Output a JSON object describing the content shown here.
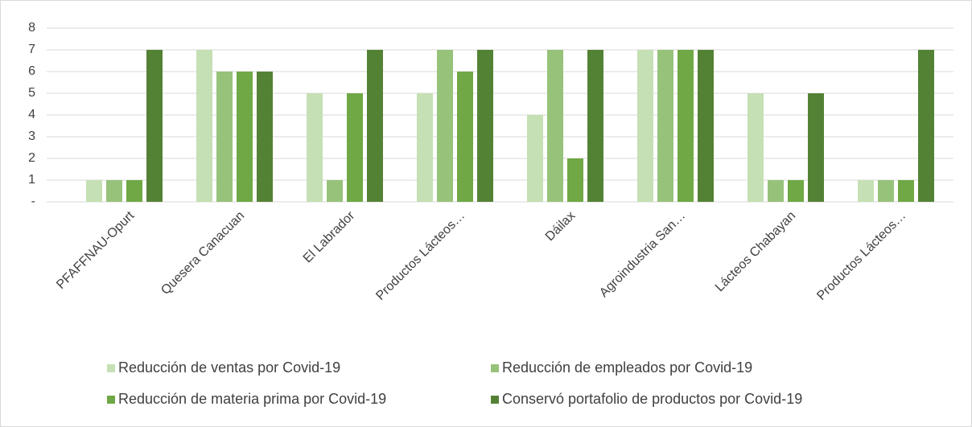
{
  "chart_data": {
    "type": "bar",
    "categories": [
      "PFAFFNAU-Opurt",
      "Quesera Canacuan",
      "El Labrador",
      "Productos Lácteos…",
      "Dáilax",
      "Agroindustria San…",
      "Lácteos Chabayan",
      "Productos Lácteos…"
    ],
    "series": [
      {
        "name": "Reducción de ventas por Covid-19",
        "color": "#c5e0b4",
        "values": [
          1,
          7,
          5,
          5,
          4,
          7,
          5,
          1
        ]
      },
      {
        "name": "Reducción de empleados por Covid-19",
        "color": "#97c27a",
        "values": [
          1,
          6,
          1,
          7,
          7,
          7,
          1,
          1
        ]
      },
      {
        "name": "Reducción de materia prima por Covid-19",
        "color": "#6fa844",
        "values": [
          1,
          6,
          5,
          6,
          2,
          7,
          1,
          1
        ]
      },
      {
        "name": "Conservó portafolio de productos por Covid-19",
        "color": "#548235",
        "values": [
          7,
          6,
          7,
          7,
          7,
          7,
          5,
          7
        ]
      }
    ],
    "ylim": [
      0,
      8
    ],
    "yticks": [
      {
        "value": 0,
        "label": "-"
      },
      1,
      2,
      3,
      4,
      5,
      6,
      7,
      8
    ],
    "grid": true
  }
}
